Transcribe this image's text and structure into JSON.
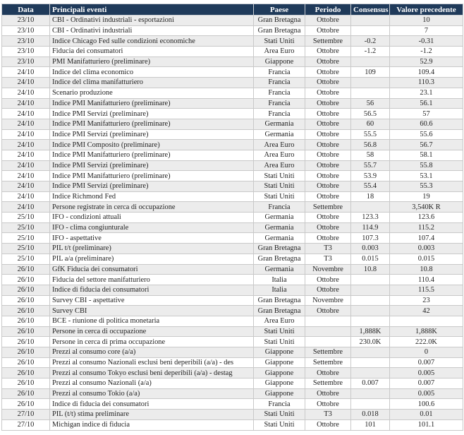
{
  "table": {
    "headers": [
      "Data",
      "Principali eventi",
      "Paese",
      "Periodo",
      "Consensus",
      "Valore precedente"
    ],
    "rows": [
      [
        "23/10",
        "CBI - Ordinativi industriali - esportazioni",
        "Gran Bretagna",
        "Ottobre",
        null,
        "10"
      ],
      [
        "23/10",
        "CBI - Ordinativi industriali",
        "Gran Bretagna",
        "Ottobre",
        null,
        "7"
      ],
      [
        "23/10",
        "Indice Chicago Fed sulle condizioni economiche",
        "Stati Uniti",
        "Settembre",
        "-0.2",
        "-0.31"
      ],
      [
        "23/10",
        "Fiducia dei consumatori",
        "Area Euro",
        "Ottobre",
        "-1.2",
        "-1.2"
      ],
      [
        "23/10",
        "PMI Manifatturiero (preliminare)",
        "Giappone",
        "Ottobre",
        null,
        "52.9"
      ],
      [
        "24/10",
        "Indice del clima economico",
        "Francia",
        "Ottobre",
        "109",
        "109.4"
      ],
      [
        "24/10",
        "Indice del clima manifatturiero",
        "Francia",
        "Ottobre",
        null,
        "110.3"
      ],
      [
        "24/10",
        "Scenario produzione",
        "Francia",
        "Ottobre",
        null,
        "23.1"
      ],
      [
        "24/10",
        "Indice PMI Manifatturiero (preliminare)",
        "Francia",
        "Ottobre",
        "56",
        "56.1"
      ],
      [
        "24/10",
        "Indice PMI Servizi (preliminare)",
        "Francia",
        "Ottobre",
        "56.5",
        "57"
      ],
      [
        "24/10",
        "Indice PMI Manifatturiero (preliminare)",
        "Germania",
        "Ottobre",
        "60",
        "60.6"
      ],
      [
        "24/10",
        "Indice PMI Servizi (preliminare)",
        "Germania",
        "Ottobre",
        "55.5",
        "55.6"
      ],
      [
        "24/10",
        "Indice PMI Composito (preliminare)",
        "Area Euro",
        "Ottobre",
        "56.8",
        "56.7"
      ],
      [
        "24/10",
        "Indice PMI Manifatturiero (preliminare)",
        "Area Euro",
        "Ottobre",
        "58",
        "58.1"
      ],
      [
        "24/10",
        "Indice PMI Servizi (preliminare)",
        "Area Euro",
        "Ottobre",
        "55.7",
        "55.8"
      ],
      [
        "24/10",
        "Indice PMI Manifatturiero (preliminare)",
        "Stati Uniti",
        "Ottobre",
        "53.9",
        "53.1"
      ],
      [
        "24/10",
        "Indice PMI Servizi (preliminare)",
        "Stati Uniti",
        "Ottobre",
        "55.4",
        "55.3"
      ],
      [
        "24/10",
        "Indice Richmond Fed",
        "Stati Uniti",
        "Ottobre",
        "18",
        "19"
      ],
      [
        "24/10",
        "Persone registrate in cerca di occupazione",
        "Francia",
        "Settembre",
        null,
        "3,540K R"
      ],
      [
        "25/10",
        "IFO - condizioni attuali",
        "Germania",
        "Ottobre",
        "123.3",
        "123.6"
      ],
      [
        "25/10",
        "IFO - clima congiunturale",
        "Germania",
        "Ottobre",
        "114.9",
        "115.2"
      ],
      [
        "25/10",
        "IFO - aspettative",
        "Germania",
        "Ottobre",
        "107.3",
        "107.4"
      ],
      [
        "25/10",
        "PIL t/t  (preliminare)",
        "Gran Bretagna",
        "T3",
        "0.003",
        "0.003"
      ],
      [
        "25/10",
        "PIL a/a (preliminare)",
        "Gran Bretagna",
        "T3",
        "0.015",
        "0.015"
      ],
      [
        "26/10",
        "GfK Fiducia dei consumatori",
        "Germania",
        "Novembre",
        "10.8",
        "10.8"
      ],
      [
        "26/10",
        "Fiducia del settore manifatturiero",
        "Italia",
        "Ottobre",
        null,
        "110.4"
      ],
      [
        "26/10",
        "Indice di fiducia dei consumatori",
        "Italia",
        "Ottobre",
        null,
        "115.5"
      ],
      [
        "26/10",
        "Survey CBI - aspettative",
        "Gran Bretagna",
        "Novembre",
        null,
        "23"
      ],
      [
        "26/10",
        "Survey CBI",
        "Gran Bretagna",
        "Ottobre",
        null,
        "42"
      ],
      [
        "26/10",
        "BCE - riunione di politica monetaria",
        "Area Euro",
        null,
        null,
        null
      ],
      [
        "26/10",
        "Persone in cerca di occupazione",
        "Stati Uniti",
        null,
        "1,888K",
        "1,888K"
      ],
      [
        "26/10",
        "Persone in cerca di prima occupazione",
        "Stati Uniti",
        null,
        "230.0K",
        "222.0K"
      ],
      [
        "26/10",
        "Prezzi al consumo core (a/a)",
        "Giappone",
        "Settembre",
        null,
        "0"
      ],
      [
        "26/10",
        "Prezzi al consumo Nazionali esclusi beni deperibili (a/a) - des",
        "Giappone",
        "Settembre",
        null,
        "0.007"
      ],
      [
        "26/10",
        "Prezzi al consumo Tokyo esclusi beni deperibili (a/a) - destag",
        "Giappone",
        "Ottobre",
        null,
        "0.005"
      ],
      [
        "26/10",
        "Prezzi al consumo Nazionali (a/a)",
        "Giappone",
        "Settembre",
        "0.007",
        "0.007"
      ],
      [
        "26/10",
        "Prezzi al consumo Tokio (a/a)",
        "Giappone",
        "Ottobre",
        null,
        "0.005"
      ],
      [
        "26/10",
        "Indice di fiducia dei consumatori",
        "Francia",
        "Ottobre",
        null,
        "100.6"
      ],
      [
        "27/10",
        "PIL  (t/t) stima preliminare",
        "Stati Uniti",
        "T3",
        "0.018",
        "0.01"
      ],
      [
        "27/10",
        "Michigan indice di fiducia",
        "Stati Uniti",
        "Ottobre",
        "101",
        "101.1"
      ]
    ]
  }
}
